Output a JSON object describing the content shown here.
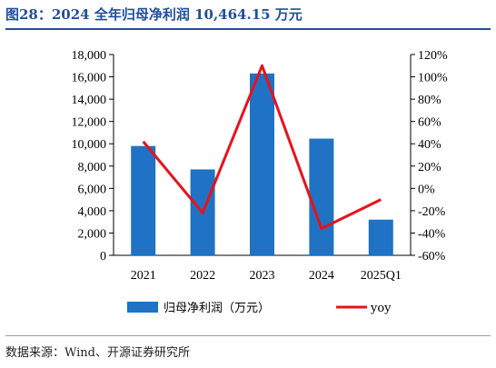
{
  "title": "图28：2024 全年归母净利润 10,464.15 万元",
  "source": "数据来源：Wind、开源证券研究所",
  "chart_data": {
    "type": "bar",
    "categories": [
      "2021",
      "2022",
      "2023",
      "2024",
      "2025Q1"
    ],
    "series": [
      {
        "name": "归母净利润（万元）",
        "type": "bar",
        "axis": "left",
        "color": "#1f72c4",
        "values": [
          9800,
          7700,
          16300,
          10464.15,
          3200
        ]
      },
      {
        "name": "yoy",
        "type": "line",
        "axis": "right",
        "color": "#e8121b",
        "values": [
          42,
          -22,
          110,
          -36,
          -10
        ]
      }
    ],
    "y_left": {
      "min": 0,
      "max": 18000,
      "ticks": [
        0,
        2000,
        4000,
        6000,
        8000,
        10000,
        12000,
        14000,
        16000,
        18000
      ],
      "tick_labels": [
        "0",
        "2,000",
        "4,000",
        "6,000",
        "8,000",
        "10,000",
        "12,000",
        "14,000",
        "16,000",
        "18,000"
      ]
    },
    "y_right": {
      "min": -60,
      "max": 120,
      "ticks": [
        -60,
        -40,
        -20,
        0,
        20,
        40,
        60,
        80,
        100,
        120
      ],
      "tick_labels": [
        "-60%",
        "-40%",
        "-20%",
        "0%",
        "20%",
        "40%",
        "60%",
        "80%",
        "100%",
        "120%"
      ]
    },
    "grid": false,
    "legend": "bottom"
  }
}
